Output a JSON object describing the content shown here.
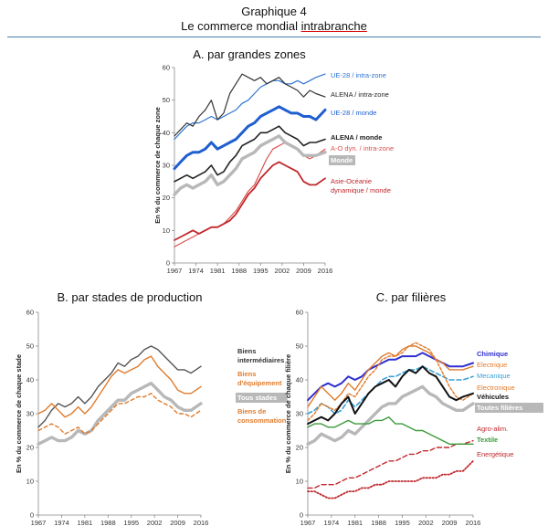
{
  "header": {
    "figure_label": "Graphique 4",
    "title_prefix": "Le commerce mondial ",
    "title_underlined": "intrabranche"
  },
  "chart_data": [
    {
      "type": "line",
      "title": "A. par grandes zones",
      "ylabel": "En % du commerce de chaque zone",
      "ylim": [
        0,
        60
      ],
      "yticks": [
        0,
        10,
        20,
        30,
        40,
        50,
        60
      ],
      "xticks": [
        "1967",
        "1974",
        "1981",
        "1988",
        "1995",
        "2002",
        "2009",
        "2016"
      ],
      "x": [
        1967,
        1969,
        1971,
        1973,
        1975,
        1977,
        1979,
        1981,
        1983,
        1985,
        1987,
        1989,
        1991,
        1993,
        1995,
        1997,
        1999,
        2001,
        2003,
        2005,
        2007,
        2009,
        2011,
        2013,
        2016
      ],
      "series": [
        {
          "name": "UE-28 / intra-zone",
          "color": "#2e75d1",
          "width": 1.2,
          "values": [
            38,
            40,
            42,
            43,
            43,
            44,
            45,
            44,
            45,
            46,
            47,
            49,
            50,
            52,
            54,
            55,
            56,
            56,
            55,
            55,
            56,
            55,
            56,
            57,
            58
          ]
        },
        {
          "name": "ALENA / intra-zone",
          "color": "#333333",
          "width": 1.2,
          "values": [
            39,
            41,
            43,
            42,
            45,
            47,
            50,
            44,
            46,
            52,
            55,
            58,
            57,
            56,
            57,
            55,
            56,
            57,
            55,
            54,
            53,
            51,
            53,
            52,
            51
          ]
        },
        {
          "name": "UE-28 / monde",
          "color": "#1f5fd0",
          "width": 3,
          "values": [
            29,
            31,
            33,
            34,
            34,
            35,
            37,
            35,
            36,
            37,
            38,
            40,
            42,
            43,
            45,
            46,
            47,
            48,
            47,
            46,
            46,
            45,
            45,
            44,
            47
          ]
        },
        {
          "name": "ALENA / monde",
          "color": "#222222",
          "width": 1.6,
          "values": [
            25,
            26,
            27,
            26,
            27,
            28,
            30,
            27,
            28,
            31,
            33,
            36,
            37,
            38,
            40,
            40,
            41,
            42,
            40,
            39,
            38,
            36,
            37,
            37,
            38
          ]
        },
        {
          "name": "A-O dyn. / intra-zone",
          "color": "#d9534f",
          "width": 1.2,
          "values": [
            5,
            6,
            7,
            8,
            9,
            10,
            11,
            11,
            12,
            14,
            16,
            19,
            22,
            24,
            28,
            32,
            35,
            36,
            37,
            36,
            35,
            33,
            32,
            33,
            35
          ]
        },
        {
          "name": "Monde",
          "color": "#b8b8b8",
          "width": 3.4,
          "values": [
            21,
            23,
            24,
            23,
            24,
            25,
            27,
            24,
            25,
            27,
            29,
            32,
            33,
            34,
            36,
            37,
            38,
            39,
            37,
            36,
            35,
            33,
            33,
            33,
            34
          ]
        },
        {
          "name": "Asie-Océanie dynamique / monde",
          "color": "#c0282d",
          "width": 1.8,
          "values": [
            7,
            8,
            9,
            10,
            9,
            10,
            11,
            11,
            12,
            13,
            15,
            18,
            21,
            23,
            26,
            28,
            30,
            31,
            30,
            29,
            28,
            25,
            24,
            24,
            26
          ]
        }
      ]
    },
    {
      "type": "line",
      "title": "B. par stades de production",
      "ylabel": "En % du commerce de chaque stade",
      "ylim": [
        0,
        60
      ],
      "yticks": [
        0,
        10,
        20,
        30,
        40,
        50,
        60
      ],
      "xticks": [
        "1967",
        "1974",
        "1981",
        "1988",
        "1995",
        "2002",
        "2009",
        "2016"
      ],
      "x": [
        1967,
        1969,
        1971,
        1973,
        1975,
        1977,
        1979,
        1981,
        1983,
        1985,
        1987,
        1989,
        1991,
        1993,
        1995,
        1997,
        1999,
        2001,
        2003,
        2005,
        2007,
        2009,
        2011,
        2013,
        2016
      ],
      "series": [
        {
          "name": "Biens intermédiaires",
          "color": "#555555",
          "width": 1.4,
          "values": [
            26,
            28,
            31,
            33,
            32,
            33,
            35,
            33,
            35,
            38,
            40,
            42,
            45,
            44,
            46,
            47,
            49,
            50,
            49,
            47,
            45,
            43,
            43,
            42,
            44
          ]
        },
        {
          "name": "Biens d'équipement",
          "color": "#e07b2c",
          "width": 1.4,
          "values": [
            30,
            31,
            33,
            31,
            29,
            30,
            32,
            30,
            32,
            35,
            38,
            41,
            43,
            42,
            43,
            44,
            46,
            47,
            44,
            42,
            40,
            37,
            36,
            36,
            38
          ]
        },
        {
          "name": "Tous stades",
          "color": "#b8b8b8",
          "width": 3.4,
          "values": [
            21,
            22,
            23,
            22,
            22,
            23,
            25,
            24,
            25,
            28,
            30,
            32,
            34,
            34,
            36,
            37,
            38,
            39,
            37,
            35,
            34,
            32,
            31,
            31,
            33
          ]
        },
        {
          "name": "Biens de consommation",
          "color": "#e07b2c",
          "width": 1.4,
          "dash": "4 3",
          "values": [
            25,
            26,
            27,
            26,
            24,
            25,
            26,
            24,
            25,
            27,
            29,
            31,
            33,
            33,
            34,
            35,
            35,
            36,
            34,
            33,
            32,
            30,
            30,
            29,
            31
          ]
        }
      ]
    },
    {
      "type": "line",
      "title": "C. par filières",
      "ylabel": "En % du commerce de chaque filière",
      "ylim": [
        0,
        60
      ],
      "yticks": [
        0,
        10,
        20,
        30,
        40,
        50,
        60
      ],
      "xticks": [
        "1967",
        "1974",
        "1981",
        "1988",
        "1995",
        "2002",
        "2009",
        "2016"
      ],
      "x": [
        1967,
        1969,
        1971,
        1973,
        1975,
        1977,
        1979,
        1981,
        1983,
        1985,
        1987,
        1989,
        1991,
        1993,
        1995,
        1997,
        1999,
        2001,
        2003,
        2005,
        2007,
        2009,
        2011,
        2013,
        2016
      ],
      "series": [
        {
          "name": "Chimique",
          "color": "#2f2fd0",
          "width": 2,
          "values": [
            34,
            36,
            38,
            39,
            38,
            39,
            41,
            40,
            41,
            43,
            44,
            45,
            46,
            46,
            47,
            47,
            47,
            48,
            47,
            46,
            45,
            44,
            44,
            44,
            45
          ]
        },
        {
          "name": "Electrique",
          "color": "#e07b2c",
          "width": 1.4,
          "values": [
            32,
            35,
            38,
            36,
            34,
            36,
            39,
            37,
            40,
            43,
            45,
            47,
            48,
            47,
            49,
            50,
            50,
            49,
            48,
            46,
            45,
            43,
            43,
            43,
            44
          ]
        },
        {
          "name": "Mecanique",
          "color": "#3aa0d8",
          "width": 1.6,
          "dash": "5 3",
          "values": [
            30,
            31,
            33,
            32,
            30,
            31,
            34,
            32,
            34,
            36,
            38,
            40,
            41,
            41,
            42,
            43,
            43,
            44,
            43,
            42,
            41,
            40,
            40,
            40,
            41
          ]
        },
        {
          "name": "Electronique",
          "color": "#e07b2c",
          "width": 1.4,
          "dash": "3 2",
          "values": [
            28,
            30,
            33,
            32,
            31,
            33,
            36,
            35,
            38,
            41,
            43,
            46,
            47,
            47,
            48,
            50,
            51,
            50,
            49,
            46,
            42,
            38,
            35,
            34,
            36
          ]
        },
        {
          "name": "Véhicules",
          "color": "#111111",
          "width": 2,
          "values": [
            27,
            28,
            29,
            28,
            30,
            33,
            35,
            30,
            33,
            36,
            38,
            39,
            40,
            38,
            41,
            43,
            42,
            44,
            42,
            41,
            38,
            35,
            34,
            35,
            36
          ]
        },
        {
          "name": "Toutes filières",
          "color": "#b8b8b8",
          "width": 3.4,
          "values": [
            21,
            22,
            24,
            23,
            22,
            23,
            25,
            24,
            26,
            28,
            30,
            32,
            33,
            33,
            35,
            36,
            37,
            38,
            36,
            35,
            33,
            32,
            31,
            31,
            33
          ]
        },
        {
          "name": "Agro-alim.",
          "color": "#c0282d",
          "width": 1.4,
          "dash": "5 3",
          "values": [
            8,
            8,
            9,
            9,
            9,
            10,
            11,
            11,
            12,
            13,
            14,
            15,
            16,
            16,
            17,
            18,
            18,
            19,
            19,
            20,
            20,
            20,
            21,
            21,
            22
          ]
        },
        {
          "name": "Textile",
          "color": "#3a9a3a",
          "width": 1.4,
          "values": [
            26,
            27,
            27,
            26,
            26,
            27,
            28,
            27,
            27,
            27,
            28,
            28,
            29,
            27,
            27,
            26,
            25,
            25,
            24,
            23,
            22,
            21,
            21,
            21,
            21
          ]
        },
        {
          "name": "Energétique",
          "color": "#c0282d",
          "width": 1.8,
          "dash": "1.5 2",
          "values": [
            7,
            7,
            6,
            5,
            5,
            6,
            7,
            7,
            8,
            8,
            9,
            9,
            10,
            10,
            10,
            10,
            10,
            11,
            11,
            11,
            12,
            12,
            13,
            13,
            16
          ]
        }
      ]
    }
  ],
  "legends": {
    "a": [
      {
        "text": [
          "UE-28 / intra-zone"
        ],
        "color": "#2e75d1",
        "bold": false
      },
      {
        "text": [
          "ALENA / intra-zone"
        ],
        "color": "#222222",
        "bold": false
      },
      {
        "text": [
          "UE-28 / monde"
        ],
        "color": "#1f5fd0",
        "bold": false
      },
      {
        "text": [
          "ALENA / monde"
        ],
        "color": "#222222",
        "bold": true
      },
      {
        "text": [
          "A-O dyn. / intra-zone"
        ],
        "color": "#d9534f",
        "bold": false
      },
      {
        "text": [
          "Monde"
        ],
        "color": "#ffffff",
        "bold": true,
        "box": "#b8b8b8"
      },
      {
        "text": [
          "Asie-Océanie",
          "dynamique / monde"
        ],
        "color": "#c0282d",
        "bold": false
      }
    ],
    "b": [
      {
        "text": [
          "Biens",
          "intermédiaires"
        ],
        "color": "#333333",
        "bold": true
      },
      {
        "text": [
          "Biens",
          "d'équipement"
        ],
        "color": "#e07b2c",
        "bold": true
      },
      {
        "text": [
          "Tous stades"
        ],
        "color": "#ffffff",
        "bold": true,
        "box": "#b8b8b8"
      },
      {
        "text": [
          "Biens de",
          "consommation"
        ],
        "color": "#e07b2c",
        "bold": true
      }
    ],
    "c": [
      {
        "text": [
          "Chimique"
        ],
        "color": "#2f2fd0",
        "bold": true
      },
      {
        "text": [
          "Electrique"
        ],
        "color": "#e07b2c",
        "bold": false
      },
      {
        "text": [
          "Mecanique"
        ],
        "color": "#3aa0d8",
        "bold": false
      },
      {
        "text": [
          "Electronique"
        ],
        "color": "#e07b2c",
        "bold": false
      },
      {
        "text": [
          "Véhicules"
        ],
        "color": "#111111",
        "bold": true
      },
      {
        "text": [
          "Toutes filières"
        ],
        "color": "#ffffff",
        "bold": true,
        "box": "#b8b8b8"
      },
      {
        "text": [
          "Agro-alim."
        ],
        "color": "#c0282d",
        "bold": false
      },
      {
        "text": [
          "Textile"
        ],
        "color": "#3a9a3a",
        "bold": true
      },
      {
        "text": [
          "Energétique"
        ],
        "color": "#c0282d",
        "bold": false
      }
    ]
  }
}
